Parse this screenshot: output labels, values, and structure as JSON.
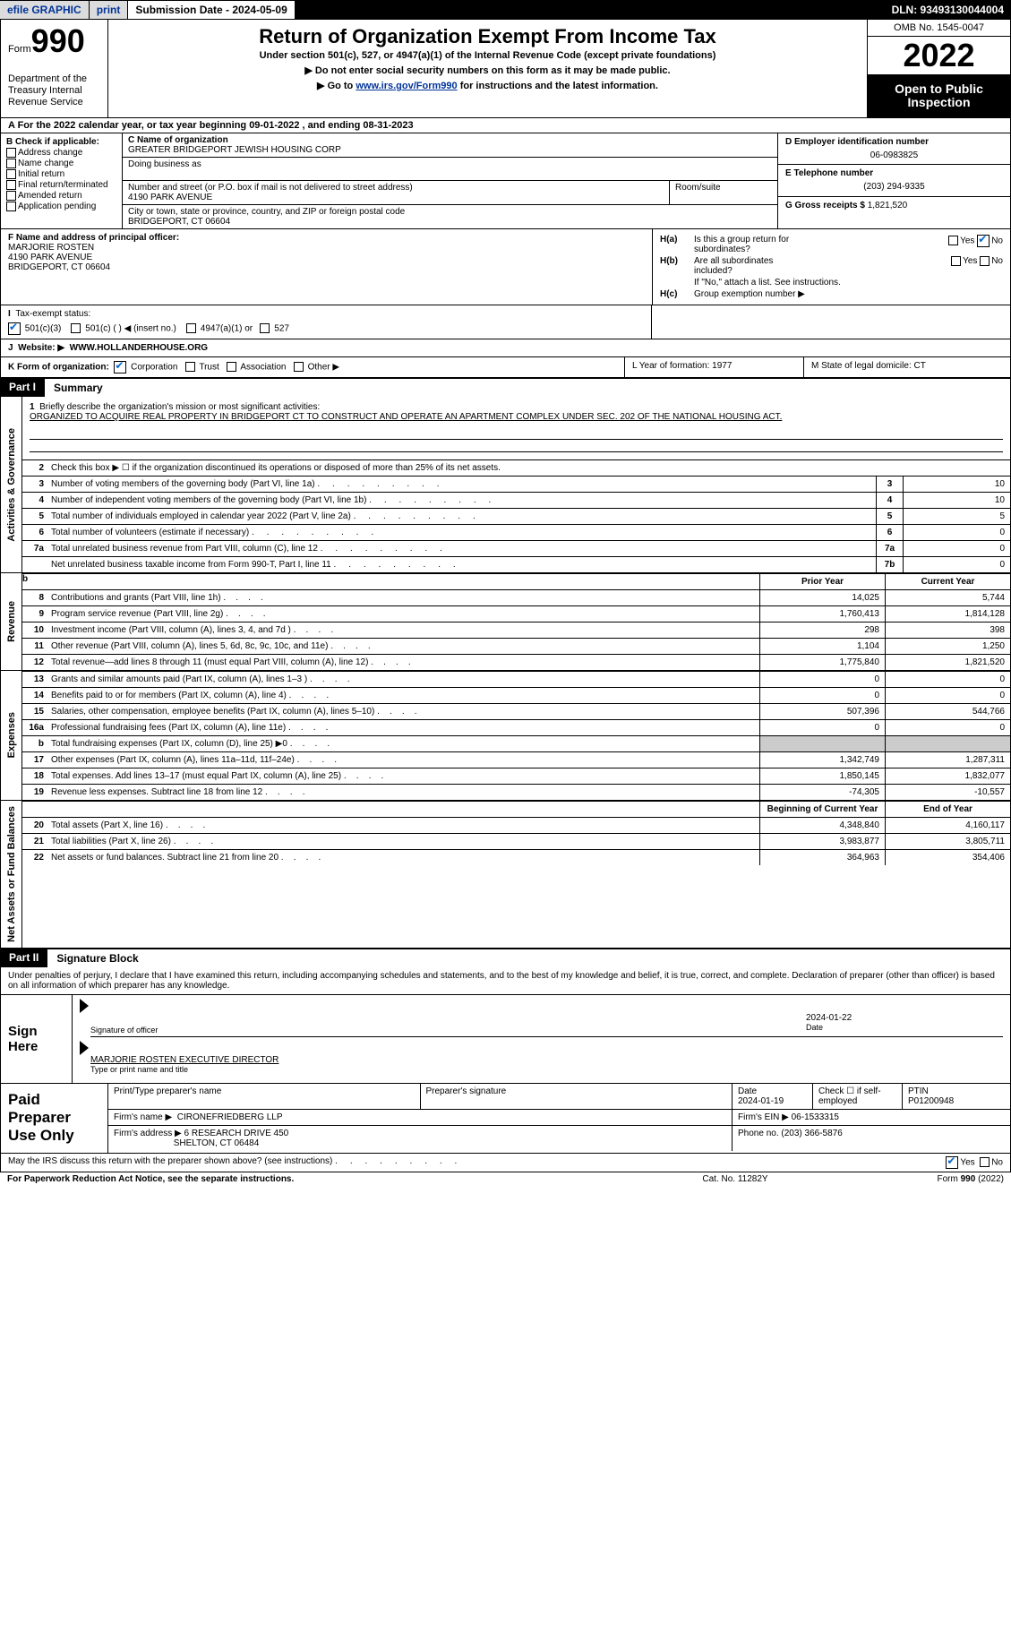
{
  "topbar": {
    "efile": "efile GRAPHIC",
    "print": "print",
    "submission_label": "Submission Date - 2024-05-09",
    "dln_label": "DLN: 93493130044004"
  },
  "header": {
    "form_word": "Form",
    "form_num": "990",
    "dept": "Department of the Treasury Internal Revenue Service",
    "title": "Return of Organization Exempt From Income Tax",
    "sub1": "Under section 501(c), 527, or 4947(a)(1) of the Internal Revenue Code (except private foundations)",
    "sub2": "▶ Do not enter social security numbers on this form as it may be made public.",
    "sub3_pre": "▶ Go to ",
    "sub3_link": "www.irs.gov/Form990",
    "sub3_post": " for instructions and the latest information.",
    "omb": "OMB No. 1545-0047",
    "year": "2022",
    "open": "Open to Public Inspection"
  },
  "rowA": "A For the 2022 calendar year, or tax year beginning 09-01-2022    , and ending 08-31-2023",
  "sectionB": {
    "label": "B Check if applicable:",
    "items": [
      "Address change",
      "Name change",
      "Initial return",
      "Final return/terminated",
      "Amended return",
      "Application pending"
    ]
  },
  "sectionC": {
    "name_label": "C Name of organization",
    "name": "GREATER BRIDGEPORT JEWISH HOUSING CORP",
    "dba_label": "Doing business as",
    "addr_label": "Number and street (or P.O. box if mail is not delivered to street address)",
    "addr": "4190 PARK AVENUE",
    "room_label": "Room/suite",
    "city_label": "City or town, state or province, country, and ZIP or foreign postal code",
    "city": "BRIDGEPORT, CT  06604"
  },
  "sectionD": {
    "ein_label": "D Employer identification number",
    "ein": "06-0983825",
    "phone_label": "E Telephone number",
    "phone": "(203) 294-9335",
    "gross_label": "G Gross receipts $",
    "gross": "1,821,520"
  },
  "sectionF": {
    "label": "F Name and address of principal officer:",
    "name": "MARJORIE ROSTEN",
    "addr1": "4190 PARK AVENUE",
    "addr2": "BRIDGEPORT, CT  06604"
  },
  "sectionH": {
    "ha_l": "H(a)",
    "ha_t1": "Is this a group return for",
    "ha_t2": "subordinates?",
    "hb_l": "H(b)",
    "hb_t1": "Are all subordinates",
    "hb_t2": "included?",
    "note": "If \"No,\" attach a list. See instructions.",
    "hc_l": "H(c)",
    "hc_t": "Group exemption number ▶",
    "yes": "Yes",
    "no": "No"
  },
  "sectionI": {
    "label": "I",
    "text": "Tax-exempt status:",
    "opts": [
      "501(c)(3)",
      "501(c) (   ) ◀ (insert no.)",
      "4947(a)(1) or",
      "527"
    ]
  },
  "sectionJ": {
    "label": "J",
    "text": "Website: ▶",
    "val": "WWW.HOLLANDERHOUSE.ORG"
  },
  "sectionK": {
    "label": "K Form of organization:",
    "opts": [
      "Corporation",
      "Trust",
      "Association",
      "Other ▶"
    ]
  },
  "sectionL": {
    "text": "L Year of formation: 1977"
  },
  "sectionM": {
    "text": "M State of legal domicile: CT"
  },
  "part1": {
    "hdr": "Part I",
    "title": "Summary",
    "side_act": "Activities & Governance",
    "side_rev": "Revenue",
    "side_exp": "Expenses",
    "side_net": "Net Assets or Fund Balances",
    "mission_label": "Briefly describe the organization's mission or most significant activities:",
    "mission": "ORGANIZED TO ACQUIRE REAL PROPERTY IN BRIDGEPORT CT TO CONSTRUCT AND OPERATE AN APARTMENT COMPLEX UNDER SEC. 202 OF THE NATIONAL HOUSING ACT.",
    "line2": "Check this box ▶ ☐  if the organization discontinued its operations or disposed of more than 25% of its net assets.",
    "rows_gov": [
      {
        "n": "3",
        "d": "Number of voting members of the governing body (Part VI, line 1a)",
        "b": "3",
        "v": "10"
      },
      {
        "n": "4",
        "d": "Number of independent voting members of the governing body (Part VI, line 1b)",
        "b": "4",
        "v": "10"
      },
      {
        "n": "5",
        "d": "Total number of individuals employed in calendar year 2022 (Part V, line 2a)",
        "b": "5",
        "v": "5"
      },
      {
        "n": "6",
        "d": "Total number of volunteers (estimate if necessary)",
        "b": "6",
        "v": "0"
      },
      {
        "n": "7a",
        "d": "Total unrelated business revenue from Part VIII, column (C), line 12",
        "b": "7a",
        "v": "0"
      },
      {
        "n": "",
        "d": "Net unrelated business taxable income from Form 990-T, Part I, line 11",
        "b": "7b",
        "v": "0"
      }
    ],
    "col_prior": "Prior Year",
    "col_current": "Current Year",
    "rows_rev": [
      {
        "n": "8",
        "d": "Contributions and grants (Part VIII, line 1h)",
        "p": "14,025",
        "c": "5,744"
      },
      {
        "n": "9",
        "d": "Program service revenue (Part VIII, line 2g)",
        "p": "1,760,413",
        "c": "1,814,128"
      },
      {
        "n": "10",
        "d": "Investment income (Part VIII, column (A), lines 3, 4, and 7d )",
        "p": "298",
        "c": "398"
      },
      {
        "n": "11",
        "d": "Other revenue (Part VIII, column (A), lines 5, 6d, 8c, 9c, 10c, and 11e)",
        "p": "1,104",
        "c": "1,250"
      },
      {
        "n": "12",
        "d": "Total revenue—add lines 8 through 11 (must equal Part VIII, column (A), line 12)",
        "p": "1,775,840",
        "c": "1,821,520"
      }
    ],
    "rows_exp": [
      {
        "n": "13",
        "d": "Grants and similar amounts paid (Part IX, column (A), lines 1–3 )",
        "p": "0",
        "c": "0"
      },
      {
        "n": "14",
        "d": "Benefits paid to or for members (Part IX, column (A), line 4)",
        "p": "0",
        "c": "0"
      },
      {
        "n": "15",
        "d": "Salaries, other compensation, employee benefits (Part IX, column (A), lines 5–10)",
        "p": "507,396",
        "c": "544,766"
      },
      {
        "n": "16a",
        "d": "Professional fundraising fees (Part IX, column (A), line 11e)",
        "p": "0",
        "c": "0"
      },
      {
        "n": "b",
        "d": "Total fundraising expenses (Part IX, column (D), line 25) ▶0",
        "p": "",
        "c": "",
        "grey": true
      },
      {
        "n": "17",
        "d": "Other expenses (Part IX, column (A), lines 11a–11d, 11f–24e)",
        "p": "1,342,749",
        "c": "1,287,311"
      },
      {
        "n": "18",
        "d": "Total expenses. Add lines 13–17 (must equal Part IX, column (A), line 25)",
        "p": "1,850,145",
        "c": "1,832,077"
      },
      {
        "n": "19",
        "d": "Revenue less expenses. Subtract line 18 from line 12",
        "p": "-74,305",
        "c": "-10,557"
      }
    ],
    "col_begin": "Beginning of Current Year",
    "col_end": "End of Year",
    "rows_net": [
      {
        "n": "20",
        "d": "Total assets (Part X, line 16)",
        "p": "4,348,840",
        "c": "4,160,117"
      },
      {
        "n": "21",
        "d": "Total liabilities (Part X, line 26)",
        "p": "3,983,877",
        "c": "3,805,711"
      },
      {
        "n": "22",
        "d": "Net assets or fund balances. Subtract line 21 from line 20",
        "p": "364,963",
        "c": "354,406"
      }
    ]
  },
  "part2": {
    "hdr": "Part II",
    "title": "Signature Block",
    "decl": "Under penalties of perjury, I declare that I have examined this return, including accompanying schedules and statements, and to the best of my knowledge and belief, it is true, correct, and complete. Declaration of preparer (other than officer) is based on all information of which preparer has any knowledge.",
    "sign_here": "Sign Here",
    "sig_officer": "Signature of officer",
    "sig_date": "2024-01-22",
    "sig_date_l": "Date",
    "sig_name": "MARJORIE ROSTEN EXECUTIVE DIRECTOR",
    "sig_name_l": "Type or print name and title",
    "paid_label": "Paid Preparer Use Only",
    "prep_name_l": "Print/Type preparer's name",
    "prep_sig_l": "Preparer's signature",
    "prep_date_l": "Date",
    "prep_date": "2024-01-19",
    "prep_check_l": "Check ☐ if self-employed",
    "ptin_l": "PTIN",
    "ptin": "P01200948",
    "firm_name_l": "Firm's name    ▶",
    "firm_name": "CIRONEFRIEDBERG LLP",
    "firm_ein_l": "Firm's EIN ▶",
    "firm_ein": "06-1533315",
    "firm_addr_l": "Firm's address ▶",
    "firm_addr1": "6 RESEARCH DRIVE 450",
    "firm_addr2": "SHELTON, CT  06484",
    "firm_phone_l": "Phone no.",
    "firm_phone": "(203) 366-5876",
    "may_text": "May the IRS discuss this return with the preparer shown above? (see instructions)",
    "yes": "Yes",
    "no": "No"
  },
  "footer": {
    "left": "For Paperwork Reduction Act Notice, see the separate instructions.",
    "center": "Cat. No. 11282Y",
    "right": "Form 990 (2022)"
  }
}
